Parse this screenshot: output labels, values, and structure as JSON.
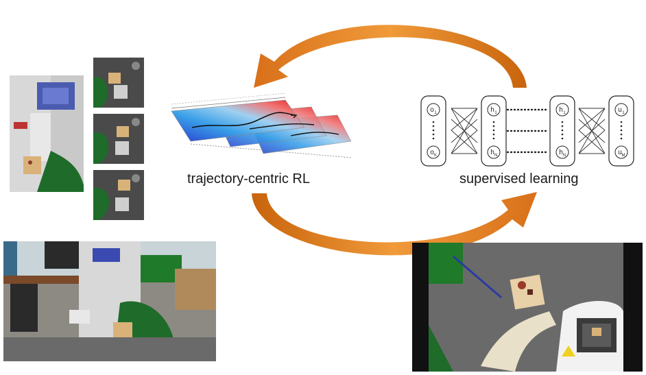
{
  "labels": {
    "left": "trajectory-centric RL",
    "right": "supervised learning"
  },
  "network": {
    "input_top": "o",
    "input_top_sub": "1",
    "input_bottom": "o",
    "input_bottom_sub": "K",
    "hidden1_top": "h",
    "hidden1_top_sub": "1",
    "hidden1_bottom": "h",
    "hidden1_bottom_sub": "N",
    "hiddenL_top": "h",
    "hiddenL_top_sub": "1",
    "hiddenL_bottom": "h",
    "hiddenL_bottom_sub": "N",
    "output_top": "u",
    "output_top_sub": "1",
    "output_bottom": "u",
    "output_bottom_sub": "M"
  },
  "colors": {
    "arrow": "#e8821e",
    "arrow_dark": "#c8640c"
  }
}
